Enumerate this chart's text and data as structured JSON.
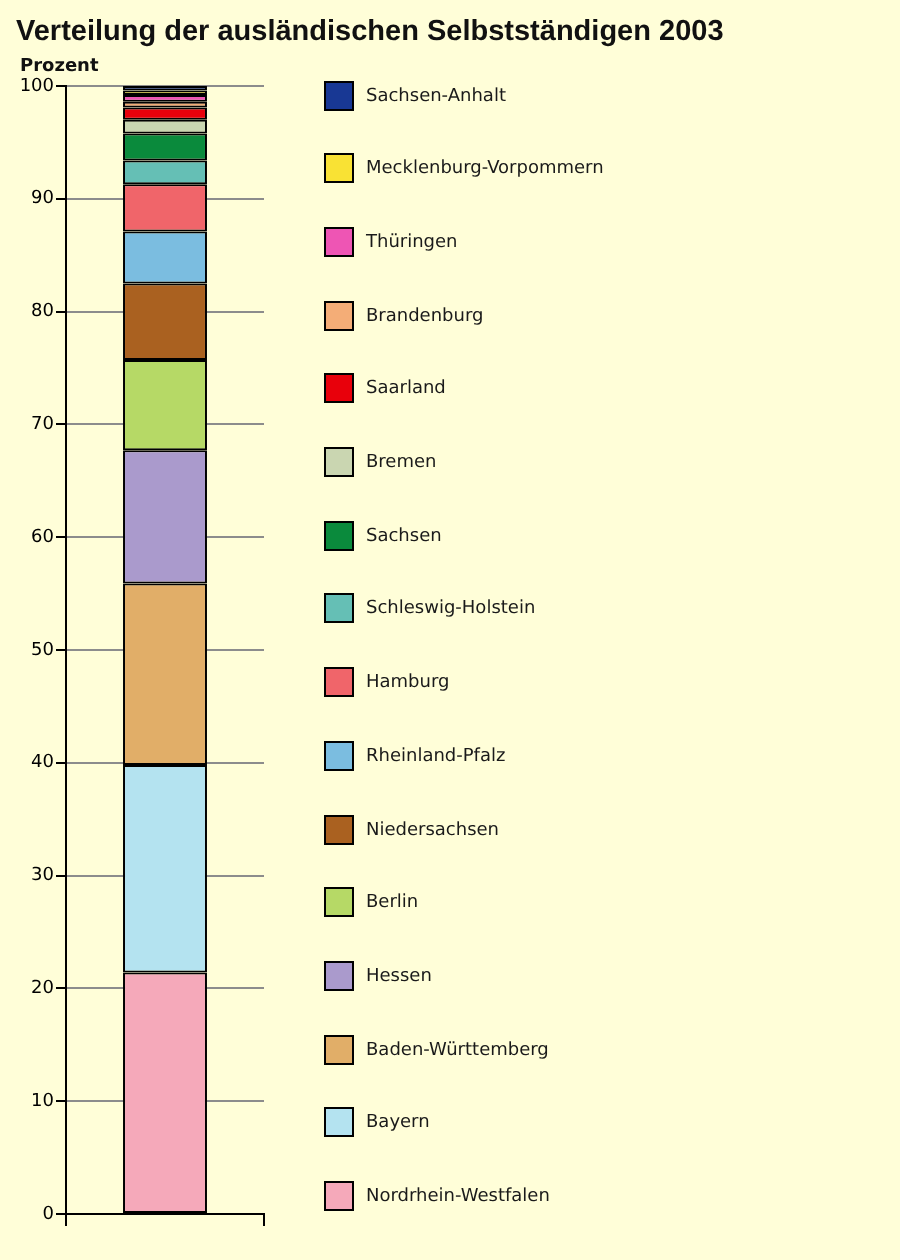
{
  "chart_data": {
    "type": "bar",
    "title": "Verteilung der ausländischen Selbstständigen 2003",
    "ylabel": "Prozent",
    "categories": [
      null
    ],
    "stacked": true,
    "series": [
      {
        "name": "Nordrhein-Westfalen",
        "color": "#f5a9ba",
        "values": [
          21.4
        ]
      },
      {
        "name": "Bayern",
        "color": "#b4e3f0",
        "values": [
          18.4
        ]
      },
      {
        "name": "Baden-Württemberg",
        "color": "#e1ae68",
        "values": [
          16.1
        ]
      },
      {
        "name": "Hessen",
        "color": "#aa9acc",
        "values": [
          11.8
        ]
      },
      {
        "name": "Berlin",
        "color": "#b6d966",
        "values": [
          8.0
        ]
      },
      {
        "name": "Niedersachsen",
        "color": "#aa6120",
        "values": [
          6.8
        ]
      },
      {
        "name": "Rheinland-Pfalz",
        "color": "#7bbde0",
        "values": [
          4.6
        ]
      },
      {
        "name": "Hamburg",
        "color": "#f0656a",
        "values": [
          4.2
        ]
      },
      {
        "name": "Schleswig-Holstein",
        "color": "#65bfb5",
        "values": [
          2.1
        ]
      },
      {
        "name": "Sachsen",
        "color": "#0a8a3c",
        "values": [
          2.4
        ]
      },
      {
        "name": "Bremen",
        "color": "#cad6b1",
        "values": [
          1.2
        ]
      },
      {
        "name": "Saarland",
        "color": "#e8000b",
        "values": [
          1.1
        ]
      },
      {
        "name": "Brandenburg",
        "color": "#f4ad77",
        "values": [
          0.5
        ]
      },
      {
        "name": "Thüringen",
        "color": "#ee55b4",
        "values": [
          0.6
        ]
      },
      {
        "name": "Mecklenburg-Vorpommern",
        "color": "#f9e234",
        "values": [
          0.4
        ]
      },
      {
        "name": "Sachsen-Anhalt",
        "color": "#183894",
        "values": [
          0.4
        ]
      }
    ],
    "ylim": [
      0,
      100
    ],
    "yticks": [
      0,
      10,
      20,
      30,
      40,
      50,
      60,
      70,
      80,
      90,
      100
    ],
    "grid": "y",
    "legend": "right"
  }
}
